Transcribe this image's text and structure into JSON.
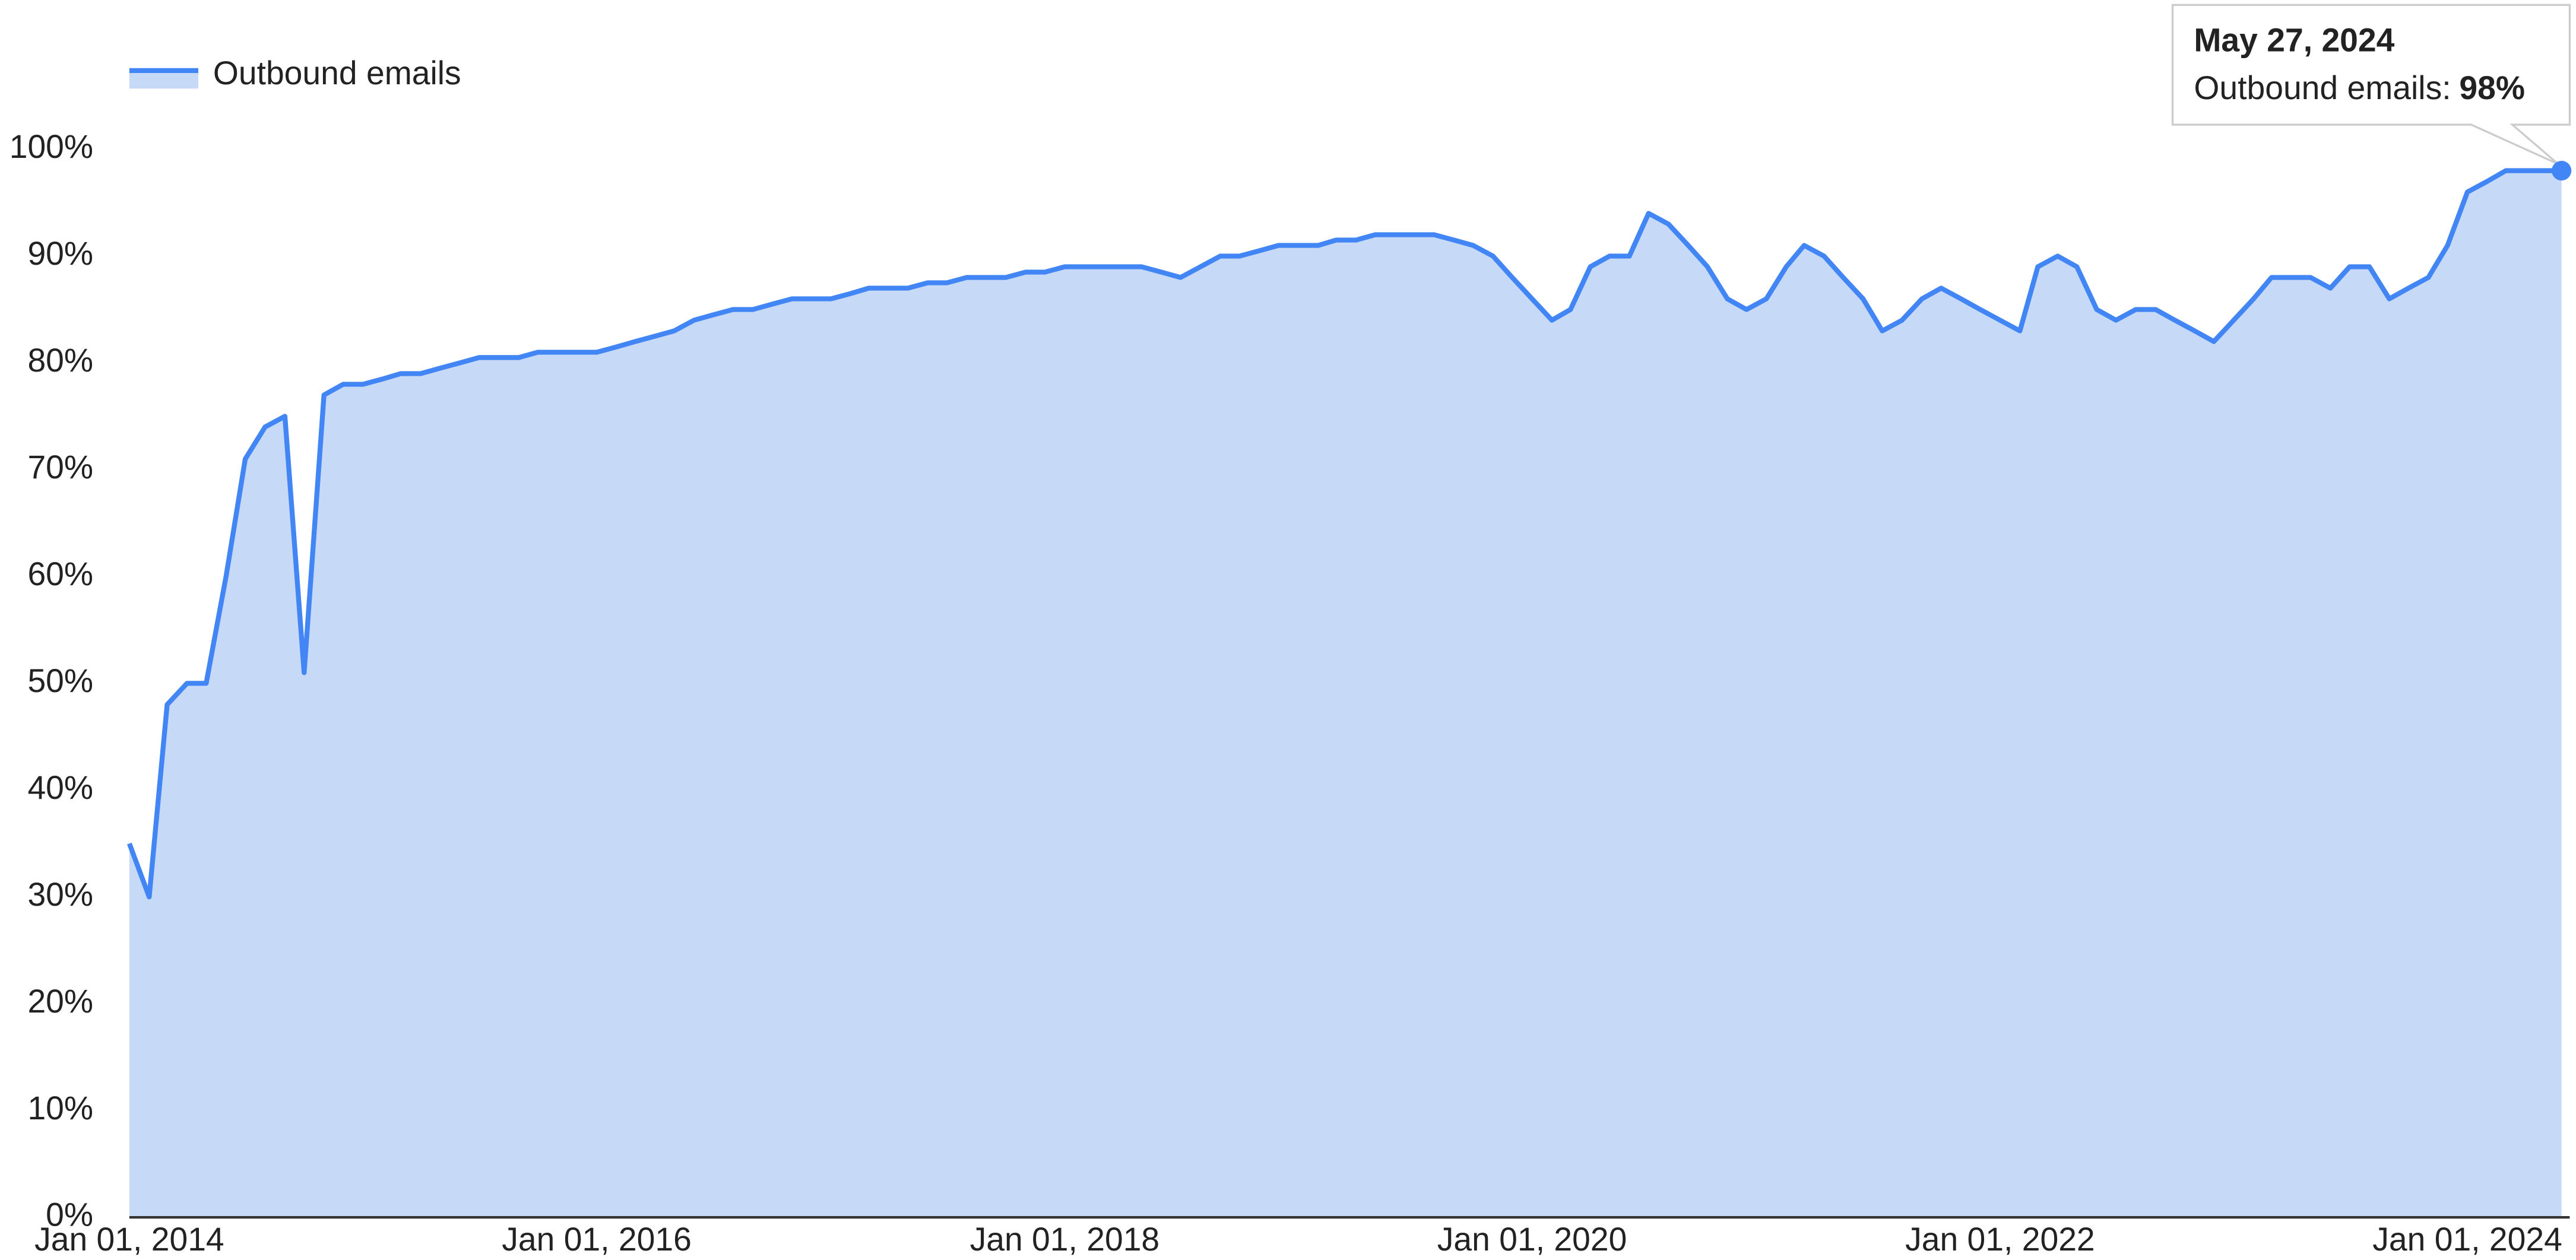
{
  "chart_data": {
    "type": "area",
    "series": [
      {
        "name": "Outbound emails",
        "color": "#4285f4",
        "fill": "#c6d9f7",
        "values": [
          35,
          30,
          48,
          50,
          50,
          60,
          71,
          74,
          75,
          51,
          77,
          78,
          78,
          78.5,
          79,
          79,
          79.5,
          80,
          80.5,
          80.5,
          80.5,
          81,
          81,
          81,
          81,
          81.5,
          82,
          82.5,
          83,
          84,
          84.5,
          85,
          85,
          85.5,
          86,
          86,
          86,
          86.5,
          87,
          87,
          87,
          87.5,
          87.5,
          88,
          88,
          88,
          88.5,
          88.5,
          89,
          89,
          89,
          89,
          89,
          88.5,
          88,
          89,
          90,
          90,
          90.5,
          91,
          91,
          91,
          91.5,
          91.5,
          92,
          92,
          92,
          92,
          91.5,
          91,
          90,
          88,
          86,
          84,
          85,
          89,
          90,
          90,
          94,
          93,
          91,
          89,
          86,
          85,
          86,
          89,
          91,
          90,
          88,
          86,
          83,
          84,
          86,
          87,
          86,
          85,
          84,
          83,
          89,
          90,
          89,
          85,
          84,
          85,
          85,
          84,
          83,
          82,
          84,
          86,
          88,
          88,
          88,
          87,
          89,
          89,
          86,
          87,
          88,
          91,
          96,
          97,
          98,
          98,
          98,
          98
        ]
      }
    ],
    "x": [
      "2014-01-01",
      "2014-02-01",
      "2014-03-01",
      "2014-04-01",
      "2014-05-01",
      "2014-06-01",
      "2014-07-01",
      "2014-08-01",
      "2014-09-01",
      "2014-10-01",
      "2014-11-01",
      "2014-12-01",
      "2015-01-01",
      "2015-02-01",
      "2015-03-01",
      "2015-04-01",
      "2015-05-01",
      "2015-06-01",
      "2015-07-01",
      "2015-08-01",
      "2015-09-01",
      "2015-10-01",
      "2015-11-01",
      "2015-12-01",
      "2016-01-01",
      "2016-02-01",
      "2016-03-01",
      "2016-04-01",
      "2016-05-01",
      "2016-06-01",
      "2016-07-01",
      "2016-08-01",
      "2016-09-01",
      "2016-10-01",
      "2016-11-01",
      "2016-12-01",
      "2017-01-01",
      "2017-02-01",
      "2017-03-01",
      "2017-04-01",
      "2017-05-01",
      "2017-06-01",
      "2017-07-01",
      "2017-08-01",
      "2017-09-01",
      "2017-10-01",
      "2017-11-01",
      "2017-12-01",
      "2018-01-01",
      "2018-02-01",
      "2018-03-01",
      "2018-04-01",
      "2018-05-01",
      "2018-06-01",
      "2018-07-01",
      "2018-08-01",
      "2018-09-01",
      "2018-10-01",
      "2018-11-01",
      "2018-12-01",
      "2019-01-01",
      "2019-02-01",
      "2019-03-01",
      "2019-04-01",
      "2019-05-01",
      "2019-06-01",
      "2019-07-01",
      "2019-08-01",
      "2019-09-01",
      "2019-10-01",
      "2019-11-01",
      "2019-12-01",
      "2020-01-01",
      "2020-02-01",
      "2020-03-01",
      "2020-04-01",
      "2020-05-01",
      "2020-06-01",
      "2020-07-01",
      "2020-08-01",
      "2020-09-01",
      "2020-10-01",
      "2020-11-01",
      "2020-12-01",
      "2021-01-01",
      "2021-02-01",
      "2021-03-01",
      "2021-04-01",
      "2021-05-01",
      "2021-06-01",
      "2021-07-01",
      "2021-08-01",
      "2021-09-01",
      "2021-10-01",
      "2021-11-01",
      "2021-12-01",
      "2022-01-01",
      "2022-02-01",
      "2022-03-01",
      "2022-04-01",
      "2022-05-01",
      "2022-06-01",
      "2022-07-01",
      "2022-08-01",
      "2022-09-01",
      "2022-10-01",
      "2022-11-01",
      "2022-12-01",
      "2023-01-01",
      "2023-02-01",
      "2023-03-01",
      "2023-04-01",
      "2023-05-01",
      "2023-06-01",
      "2023-07-01",
      "2023-08-01",
      "2023-09-01",
      "2023-10-01",
      "2023-11-01",
      "2023-12-01",
      "2024-01-01",
      "2024-02-01",
      "2024-03-01",
      "2024-04-01",
      "2024-05-01",
      "2024-05-27"
    ],
    "xlim": [
      "2014-01-01",
      "2024-05-27"
    ],
    "xticks": [
      {
        "value": "2014-01-01",
        "label": "Jan 01, 2014"
      },
      {
        "value": "2016-01-01",
        "label": "Jan 01, 2016"
      },
      {
        "value": "2018-01-01",
        "label": "Jan 01, 2018"
      },
      {
        "value": "2020-01-01",
        "label": "Jan 01, 2020"
      },
      {
        "value": "2022-01-01",
        "label": "Jan 01, 2022"
      },
      {
        "value": "2024-01-01",
        "label": "Jan 01, 2024"
      }
    ],
    "ylim": [
      0,
      100
    ],
    "yticks": [
      {
        "value": 0,
        "label": "0%"
      },
      {
        "value": 10,
        "label": "10%"
      },
      {
        "value": 20,
        "label": "20%"
      },
      {
        "value": 30,
        "label": "30%"
      },
      {
        "value": 40,
        "label": "40%"
      },
      {
        "value": 50,
        "label": "50%"
      },
      {
        "value": 60,
        "label": "60%"
      },
      {
        "value": 70,
        "label": "70%"
      },
      {
        "value": 80,
        "label": "80%"
      },
      {
        "value": 90,
        "label": "90%"
      },
      {
        "value": 100,
        "label": "100%"
      }
    ],
    "legend": "top-left",
    "tooltip": {
      "x": "2024-05-27",
      "title": "May 27, 2024",
      "label": "Outbound emails:",
      "value": 98,
      "value_label": "98%"
    }
  }
}
